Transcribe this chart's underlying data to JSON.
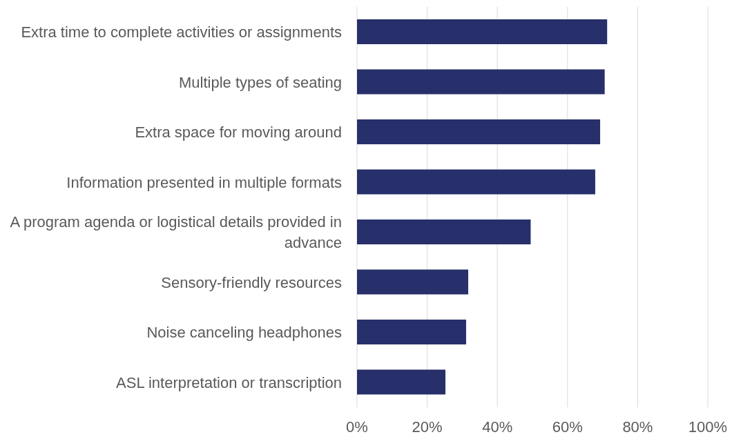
{
  "chart_data": {
    "type": "bar",
    "orientation": "horizontal",
    "categories": [
      "Extra time to complete activities or assignments",
      "Multiple types of seating",
      "Extra space for moving around",
      "Information presented in multiple formats",
      "A program agenda or logistical details provided in advance",
      "Sensory-friendly resources",
      "Noise canceling headphones",
      "ASL interpretation or transcription"
    ],
    "values": [
      71.3,
      70.6,
      69.3,
      67.9,
      49.5,
      31.7,
      31.1,
      25.2
    ],
    "color": "#27306a",
    "xlim": [
      0,
      100
    ],
    "xticks": [
      {
        "value": 0,
        "label": "0%"
      },
      {
        "value": 20,
        "label": "20%"
      },
      {
        "value": 40,
        "label": "40%"
      },
      {
        "value": 60,
        "label": "60%"
      },
      {
        "value": 80,
        "label": "80%"
      },
      {
        "value": 100,
        "label": "100%"
      }
    ],
    "grid": "x"
  }
}
